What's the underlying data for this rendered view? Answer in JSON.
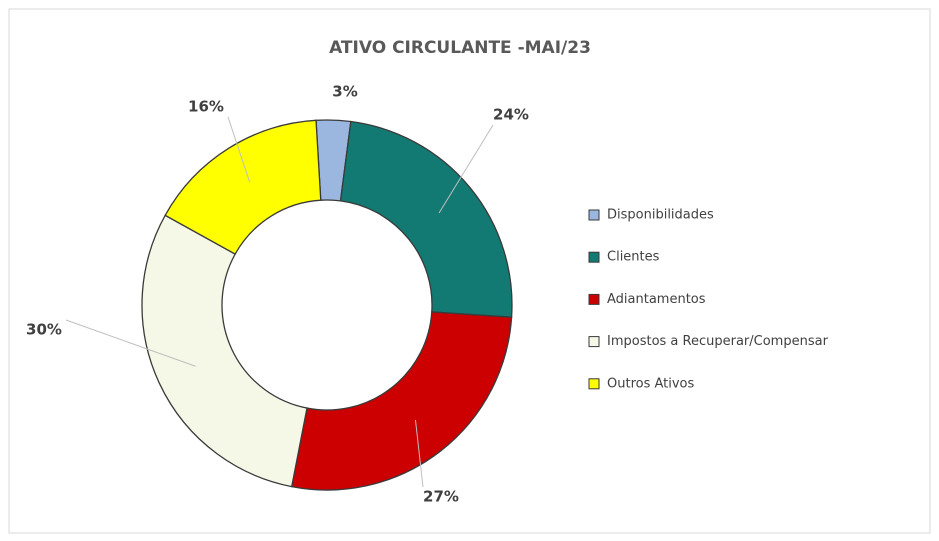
{
  "chart_data": {
    "type": "donut",
    "title": "ATIVO CIRCULANTE -MAI/23",
    "categories": [
      "Disponibilidades",
      "Clientes",
      "Adiantamentos",
      "Impostos a Recuperar/Compensar",
      "Outros Ativos"
    ],
    "values": [
      3,
      24,
      27,
      30,
      16
    ],
    "value_labels": [
      "3%",
      "24%",
      "27%",
      "30%",
      "16%"
    ],
    "colors": [
      "#9bb7e0",
      "#127a72",
      "#cc0000",
      "#f5f8e6",
      "#ffff00"
    ],
    "legend": "right"
  }
}
